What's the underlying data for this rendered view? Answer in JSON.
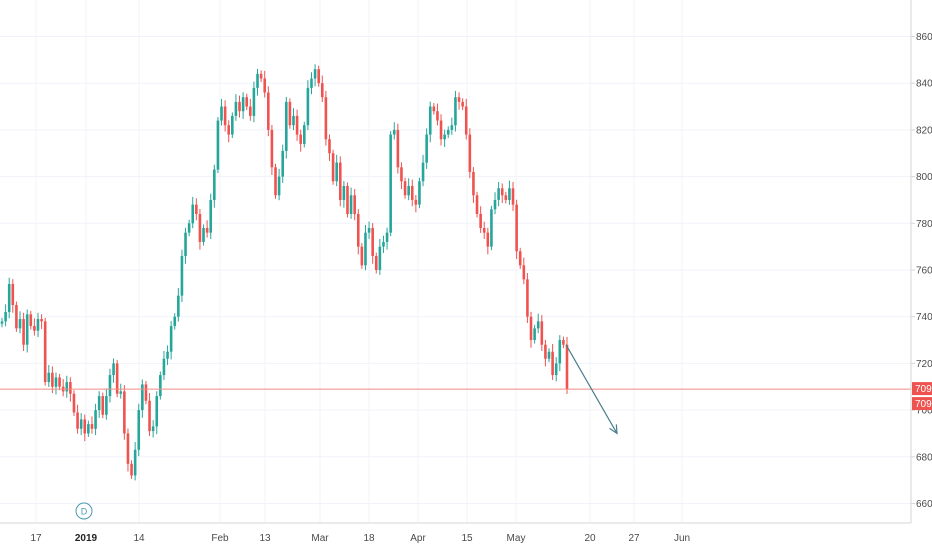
{
  "chart_data": {
    "type": "candlestick",
    "title": "",
    "xlabel": "",
    "ylabel": "",
    "ylim": [
      648,
      868
    ],
    "grid": true,
    "y_ticks": [
      660,
      680,
      700,
      720,
      740,
      760,
      780,
      800,
      820,
      840,
      860
    ],
    "x_ticks": [
      {
        "label": "17",
        "bold": false
      },
      {
        "label": "2019",
        "bold": true
      },
      {
        "label": "14",
        "bold": false
      },
      {
        "label": "Feb",
        "bold": false
      },
      {
        "label": "13",
        "bold": false
      },
      {
        "label": "Mar",
        "bold": false
      },
      {
        "label": "18",
        "bold": false
      },
      {
        "label": "Apr",
        "bold": false
      },
      {
        "label": "15",
        "bold": false
      },
      {
        "label": "May",
        "bold": false
      },
      {
        "label": "20",
        "bold": false
      },
      {
        "label": "27",
        "bold": false
      },
      {
        "label": "Jun",
        "bold": false
      }
    ],
    "close_series": [
      738,
      742,
      754,
      745,
      735,
      739,
      728,
      741,
      736,
      734,
      739,
      738,
      712,
      716,
      710,
      714,
      710,
      708,
      712,
      707,
      699,
      692,
      696,
      690,
      694,
      692,
      700,
      706,
      698,
      706,
      715,
      720,
      707,
      708,
      690,
      677,
      672,
      683,
      700,
      711,
      704,
      691,
      693,
      706,
      715,
      722,
      725,
      736,
      740,
      749,
      766,
      776,
      780,
      788,
      784,
      772,
      778,
      776,
      790,
      803,
      824,
      830,
      822,
      818,
      826,
      832,
      828,
      834,
      830,
      826,
      838,
      844,
      842,
      836,
      820,
      804,
      792,
      800,
      811,
      832,
      822,
      826,
      818,
      814,
      822,
      838,
      842,
      846,
      840,
      834,
      816,
      810,
      798,
      806,
      790,
      796,
      784,
      792,
      784,
      770,
      762,
      776,
      778,
      766,
      760,
      770,
      772,
      776,
      818,
      820,
      804,
      798,
      792,
      796,
      790,
      788,
      798,
      806,
      818,
      830,
      828,
      824,
      816,
      818,
      820,
      822,
      834,
      832,
      830,
      818,
      802,
      792,
      784,
      778,
      776,
      770,
      786,
      790,
      795,
      792,
      790,
      795,
      788,
      768,
      762,
      756,
      740,
      730,
      735,
      738,
      728,
      722,
      725,
      715,
      720,
      730,
      728,
      709
    ],
    "current_price": 709,
    "price_line_labels": [
      "709",
      "709"
    ],
    "annotations": [
      {
        "type": "arrow",
        "x1": 566,
        "y1": 728,
        "x2": 617,
        "y2": 690
      }
    ],
    "event_marker": "D"
  },
  "colors": {
    "up": "#26a69a",
    "down": "#ef5350",
    "grid": "#f0f3fa",
    "axis_text": "#4a4a4a",
    "price_line": "#f28b82",
    "price_label": "#ef5350",
    "arrow": "#4a7d8c",
    "marker": "#4a9ab0"
  }
}
